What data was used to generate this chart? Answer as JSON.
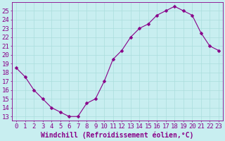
{
  "x": [
    0,
    1,
    2,
    3,
    4,
    5,
    6,
    7,
    8,
    9,
    10,
    11,
    12,
    13,
    14,
    15,
    16,
    17,
    18,
    19,
    20,
    21,
    22,
    23
  ],
  "y": [
    18.5,
    17.5,
    16.0,
    15.0,
    14.0,
    13.5,
    13.0,
    13.0,
    14.5,
    15.0,
    17.0,
    19.5,
    20.5,
    22.0,
    23.0,
    23.5,
    24.5,
    25.0,
    25.5,
    25.0,
    24.5,
    22.5,
    21.0,
    20.5
  ],
  "line_color": "#880088",
  "marker": "D",
  "marker_size": 2.5,
  "bg_color": "#c8eef0",
  "grid_color": "#aadddd",
  "xlabel": "Windchill (Refroidissement éolien,°C)",
  "xlabel_color": "#880088",
  "xlabel_fontsize": 7,
  "yticks": [
    13,
    14,
    15,
    16,
    17,
    18,
    19,
    20,
    21,
    22,
    23,
    24,
    25
  ],
  "xlim": [
    -0.5,
    23.5
  ],
  "ylim": [
    12.5,
    26.0
  ],
  "tick_fontsize": 6.5,
  "tick_color": "#880088"
}
